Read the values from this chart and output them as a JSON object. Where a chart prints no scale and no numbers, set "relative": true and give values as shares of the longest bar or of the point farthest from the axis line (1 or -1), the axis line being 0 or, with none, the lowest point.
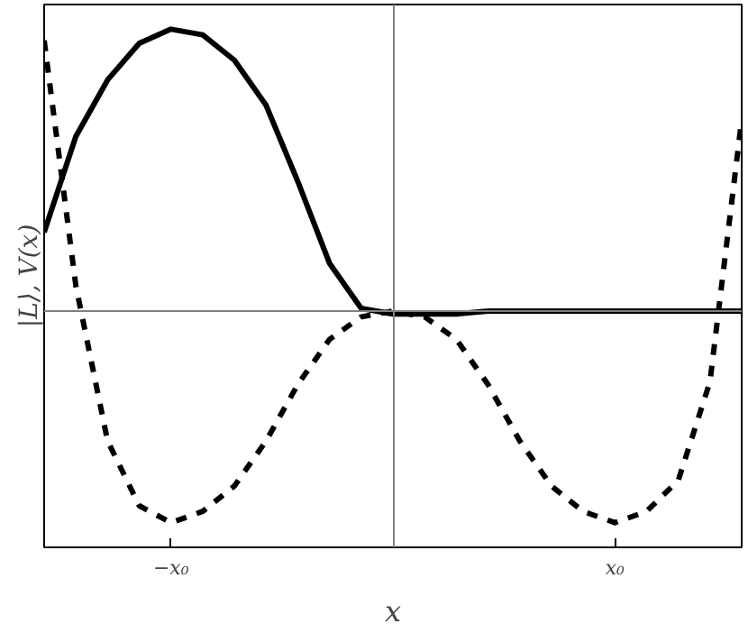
{
  "chart_data": {
    "type": "line",
    "relative": true,
    "xlabel": "x",
    "ylabel": "|L⟩, V(x)",
    "marker": "none",
    "categories": [
      null,
      null,
      null,
      null,
      "−x₀",
      null,
      null,
      null,
      null,
      null,
      null,
      null,
      null,
      null,
      null,
      null,
      null,
      null,
      "x₀",
      null,
      null,
      null,
      null
    ],
    "series": [
      {
        "color": "#000000",
        "line_style": "solid",
        "values": [
          0.28,
          0.62,
          0.82,
          0.95,
          1.0,
          0.98,
          0.89,
          0.73,
          0.46,
          0.17,
          0.01,
          -0.01,
          -0.01,
          -0.01,
          0,
          0,
          0,
          0,
          0,
          0,
          0,
          0,
          0
        ]
      },
      {
        "color": "#000000",
        "line_style": "dashed",
        "values": [
          0.96,
          0.09,
          -0.46,
          -0.69,
          -0.75,
          -0.71,
          -0.62,
          -0.46,
          -0.26,
          -0.1,
          -0.02,
          0,
          -0.02,
          -0.1,
          -0.26,
          -0.46,
          -0.62,
          -0.71,
          -0.75,
          -0.71,
          -0.6,
          -0.25,
          0.68
        ]
      }
    ],
    "ref_lines": [
      {
        "axis": "y",
        "value": 0,
        "color": "#808080"
      }
    ]
  }
}
